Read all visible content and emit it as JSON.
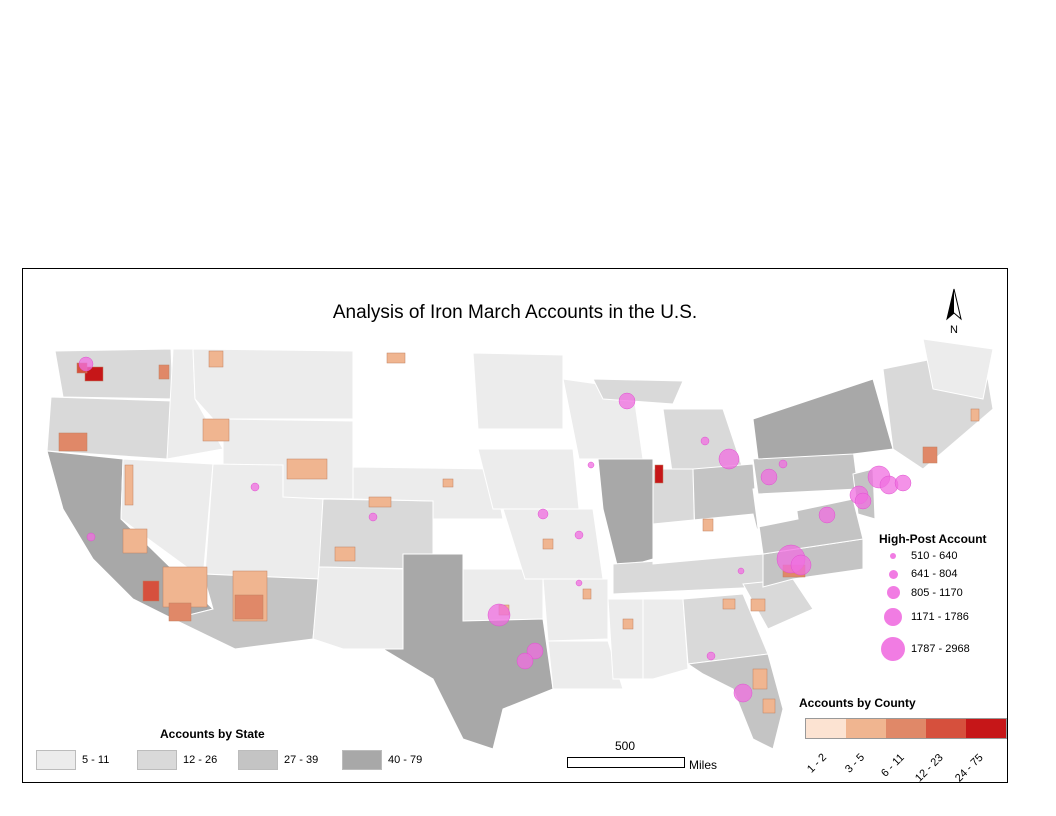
{
  "map": {
    "title": "Analysis of Iron March Accounts in the U.S.",
    "north_label": "N",
    "scale": {
      "value": "500",
      "unit": "Miles"
    }
  },
  "state_legend": {
    "title": "Accounts by State",
    "classes": [
      {
        "label": "5 - 11",
        "color": "#ececec"
      },
      {
        "label": "12 - 26",
        "color": "#d9d9d9"
      },
      {
        "label": "27 - 39",
        "color": "#c4c4c4"
      },
      {
        "label": "40 - 79",
        "color": "#a8a8a8"
      }
    ]
  },
  "county_legend": {
    "title": "Accounts by County",
    "classes": [
      {
        "label": "1 - 2",
        "color": "#fce3d2"
      },
      {
        "label": "3 - 5",
        "color": "#f0b590"
      },
      {
        "label": "6 - 11",
        "color": "#e08868"
      },
      {
        "label": "12 - 23",
        "color": "#d6503d"
      },
      {
        "label": "24 - 75",
        "color": "#c61618"
      }
    ]
  },
  "high_post_legend": {
    "title": "High-Post Account",
    "classes": [
      {
        "label": "510 - 640"
      },
      {
        "label": "641 - 804"
      },
      {
        "label": "805 - 1170"
      },
      {
        "label": "1171 - 1786"
      },
      {
        "label": "1787 - 2968"
      }
    ],
    "color": "#f06ee0"
  }
}
